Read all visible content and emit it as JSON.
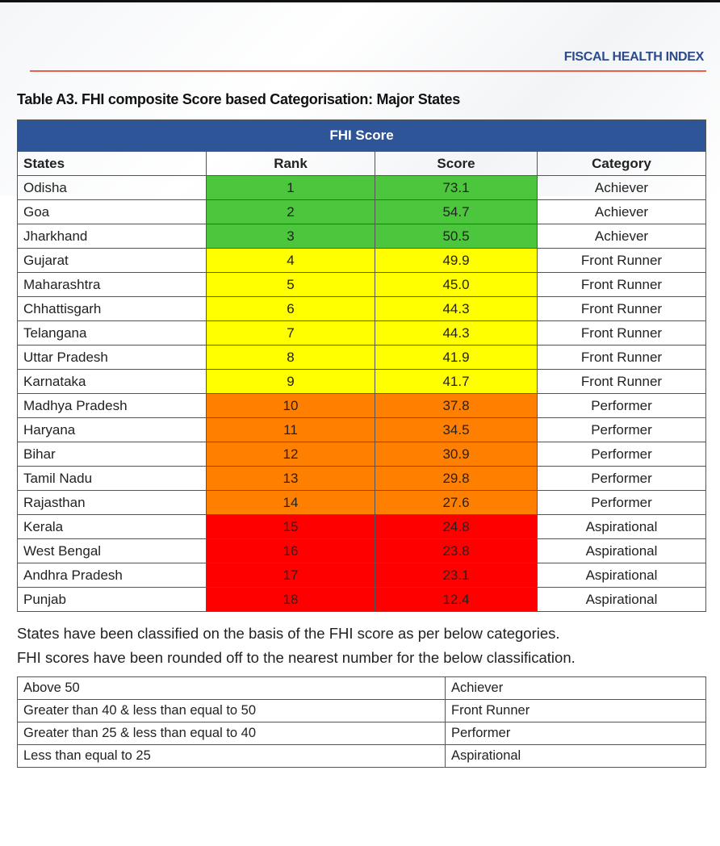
{
  "header": {
    "brand": "FISCAL HEALTH INDEX",
    "title": "Table A3. FHI composite Score based Categorisation: Major States"
  },
  "table": {
    "super_header": "FHI Score",
    "columns": [
      "States",
      "Rank",
      "Score",
      "Category"
    ],
    "category_colors": {
      "Achiever": "#4cc63c",
      "Front Runner": "#ffff00",
      "Performer": "#ff8000",
      "Aspirational": "#ff0000"
    },
    "rows": [
      {
        "state": "Odisha",
        "rank": "1",
        "score": "73.1",
        "category": "Achiever"
      },
      {
        "state": "Goa",
        "rank": "2",
        "score": "54.7",
        "category": "Achiever"
      },
      {
        "state": "Jharkhand",
        "rank": "3",
        "score": "50.5",
        "category": "Achiever"
      },
      {
        "state": "Gujarat",
        "rank": "4",
        "score": "49.9",
        "category": "Front Runner"
      },
      {
        "state": "Maharashtra",
        "rank": "5",
        "score": "45.0",
        "category": "Front Runner"
      },
      {
        "state": "Chhattisgarh",
        "rank": "6",
        "score": "44.3",
        "category": "Front Runner"
      },
      {
        "state": "Telangana",
        "rank": "7",
        "score": "44.3",
        "category": "Front Runner"
      },
      {
        "state": "Uttar Pradesh",
        "rank": "8",
        "score": "41.9",
        "category": "Front Runner"
      },
      {
        "state": "Karnataka",
        "rank": "9",
        "score": "41.7",
        "category": "Front Runner"
      },
      {
        "state": "Madhya Pradesh",
        "rank": "10",
        "score": "37.8",
        "category": "Performer"
      },
      {
        "state": "Haryana",
        "rank": "11",
        "score": "34.5",
        "category": "Performer"
      },
      {
        "state": "Bihar",
        "rank": "12",
        "score": "30.9",
        "category": "Performer"
      },
      {
        "state": "Tamil Nadu",
        "rank": "13",
        "score": "29.8",
        "category": "Performer"
      },
      {
        "state": "Rajasthan",
        "rank": "14",
        "score": "27.6",
        "category": "Performer"
      },
      {
        "state": "Kerala",
        "rank": "15",
        "score": "24.8",
        "category": "Aspirational"
      },
      {
        "state": "West Bengal",
        "rank": "16",
        "score": "23.8",
        "category": "Aspirational"
      },
      {
        "state": "Andhra Pradesh",
        "rank": "17",
        "score": "23.1",
        "category": "Aspirational"
      },
      {
        "state": "Punjab",
        "rank": "18",
        "score": "12.4",
        "category": "Aspirational"
      }
    ]
  },
  "notes": [
    "States have been classified on the basis of the FHI score as per below categories.",
    "FHI scores have been rounded off to the nearest number for the below classification."
  ],
  "legend": [
    {
      "range": "Above 50",
      "category": "Achiever"
    },
    {
      "range": "Greater than 40 & less than equal to 50",
      "category": "Front Runner"
    },
    {
      "range": "Greater than 25 & less than equal to 40",
      "category": "Performer"
    },
    {
      "range": "Less than equal to 25",
      "category": "Aspirational"
    }
  ]
}
